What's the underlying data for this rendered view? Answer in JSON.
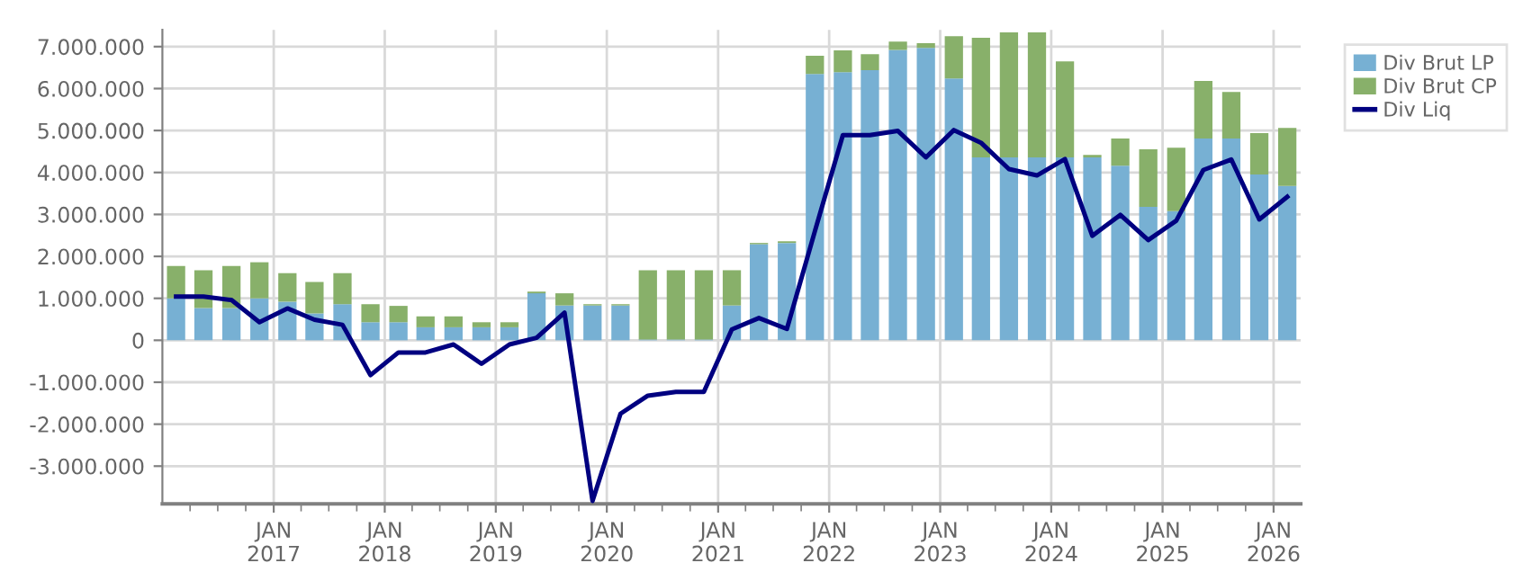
{
  "chart_data": {
    "type": "bar",
    "stacked": true,
    "x": [
      "2016-02-15",
      "2016-05-15",
      "2016-08-15",
      "2016-11-15",
      "2017-02-15",
      "2017-05-15",
      "2017-08-15",
      "2017-11-15",
      "2018-02-15",
      "2018-05-15",
      "2018-08-15",
      "2018-11-15",
      "2019-02-15",
      "2019-05-15",
      "2019-08-15",
      "2019-11-15",
      "2020-02-15",
      "2020-05-15",
      "2020-08-15",
      "2020-11-15",
      "2021-02-15",
      "2021-05-15",
      "2021-08-15",
      "2021-11-15",
      "2022-02-15",
      "2022-05-15",
      "2022-08-15",
      "2022-11-15",
      "2023-02-15",
      "2023-05-15",
      "2023-08-15",
      "2023-11-15",
      "2024-02-15",
      "2024-05-15",
      "2024-08-15",
      "2024-11-15",
      "2025-02-15",
      "2025-05-15",
      "2025-08-15",
      "2025-11-15",
      "2026-02-15"
    ],
    "series": [
      {
        "name": "Div Brut LP",
        "color": "#77b0d3",
        "values": [
          1000000,
          770000,
          770000,
          1000000,
          920000,
          640000,
          860000,
          430000,
          430000,
          310000,
          310000,
          310000,
          310000,
          1120000,
          830000,
          830000,
          830000,
          20000,
          20000,
          20000,
          830000,
          2290000,
          2320000,
          6350000,
          6390000,
          6440000,
          6920000,
          6970000,
          6240000,
          4360000,
          4360000,
          4360000,
          4360000,
          4360000,
          4160000,
          3180000,
          3080000,
          4810000,
          4810000,
          3950000,
          3680000
        ]
      },
      {
        "name": "Div Brut CP",
        "color": "#88b06a",
        "values": [
          770000,
          900000,
          1000000,
          860000,
          680000,
          750000,
          740000,
          430000,
          390000,
          260000,
          260000,
          120000,
          120000,
          40000,
          290000,
          30000,
          30000,
          1650000,
          1650000,
          1650000,
          840000,
          30000,
          40000,
          430000,
          520000,
          380000,
          200000,
          110000,
          1010000,
          2850000,
          2980000,
          2980000,
          2290000,
          60000,
          650000,
          1370000,
          1510000,
          1370000,
          1110000,
          990000,
          1380000
        ]
      },
      {
        "name": "Div Liq",
        "type": "line",
        "color": "#000080",
        "values": [
          1040000,
          1040000,
          960000,
          430000,
          760000,
          490000,
          370000,
          -830000,
          -290000,
          -290000,
          -100000,
          -560000,
          -100000,
          60000,
          660000,
          -3830000,
          -1750000,
          -1320000,
          -1230000,
          -1230000,
          260000,
          530000,
          270000,
          2600000,
          4890000,
          4890000,
          4990000,
          4360000,
          5010000,
          4710000,
          4080000,
          3930000,
          4320000,
          2490000,
          2990000,
          2390000,
          2850000,
          4060000,
          4310000,
          2880000,
          3420000
        ]
      }
    ],
    "xlim": [
      "2016-01-01",
      "2026-03-31"
    ],
    "xticks": [
      {
        "value": "2016-04-01",
        "label": null
      },
      {
        "value": "2016-07-01",
        "label": null
      },
      {
        "value": "2016-10-01",
        "label": null
      },
      {
        "value": "2017-01-01",
        "label": "JAN\n2017"
      },
      {
        "value": "2017-04-01",
        "label": null
      },
      {
        "value": "2017-07-01",
        "label": null
      },
      {
        "value": "2017-10-01",
        "label": null
      },
      {
        "value": "2018-01-01",
        "label": "JAN\n2018"
      },
      {
        "value": "2018-04-01",
        "label": null
      },
      {
        "value": "2018-07-01",
        "label": null
      },
      {
        "value": "2018-10-01",
        "label": null
      },
      {
        "value": "2019-01-01",
        "label": "JAN\n2019"
      },
      {
        "value": "2019-04-01",
        "label": null
      },
      {
        "value": "2019-07-01",
        "label": null
      },
      {
        "value": "2019-10-01",
        "label": null
      },
      {
        "value": "2020-01-01",
        "label": "JAN\n2020"
      },
      {
        "value": "2020-04-01",
        "label": null
      },
      {
        "value": "2020-07-01",
        "label": null
      },
      {
        "value": "2020-10-01",
        "label": null
      },
      {
        "value": "2021-01-01",
        "label": "JAN\n2021"
      },
      {
        "value": "2021-04-01",
        "label": null
      },
      {
        "value": "2021-07-01",
        "label": null
      },
      {
        "value": "2021-10-01",
        "label": null
      },
      {
        "value": "2022-01-01",
        "label": "JAN\n2022"
      },
      {
        "value": "2022-04-01",
        "label": null
      },
      {
        "value": "2022-07-01",
        "label": null
      },
      {
        "value": "2022-10-01",
        "label": null
      },
      {
        "value": "2023-01-01",
        "label": "JAN\n2023"
      },
      {
        "value": "2023-04-01",
        "label": null
      },
      {
        "value": "2023-07-01",
        "label": null
      },
      {
        "value": "2023-10-01",
        "label": null
      },
      {
        "value": "2024-01-01",
        "label": "JAN\n2024"
      },
      {
        "value": "2024-04-01",
        "label": null
      },
      {
        "value": "2024-07-01",
        "label": null
      },
      {
        "value": "2024-10-01",
        "label": null
      },
      {
        "value": "2025-01-01",
        "label": "JAN\n2025"
      },
      {
        "value": "2025-04-01",
        "label": null
      },
      {
        "value": "2025-07-01",
        "label": null
      },
      {
        "value": "2025-10-01",
        "label": null
      },
      {
        "value": "2026-01-01",
        "label": "JAN\n2026"
      }
    ],
    "ylim": [
      -3900000,
      7400000
    ],
    "yticks": [
      {
        "value": -3000000,
        "label": "-3.000.000"
      },
      {
        "value": -2000000,
        "label": "-2.000.000"
      },
      {
        "value": -1000000,
        "label": "-1.000.000"
      },
      0,
      {
        "value": 1000000,
        "label": "1.000.000"
      },
      {
        "value": 2000000,
        "label": "2.000.000"
      },
      {
        "value": 3000000,
        "label": "3.000.000"
      },
      {
        "value": 4000000,
        "label": "4.000.000"
      },
      {
        "value": 5000000,
        "label": "5.000.000"
      },
      {
        "value": 6000000,
        "label": "6.000.000"
      },
      {
        "value": 7000000,
        "label": "7.000.000"
      }
    ],
    "grid": true,
    "legend": "top right",
    "marker": "none",
    "line_style": "solid"
  }
}
